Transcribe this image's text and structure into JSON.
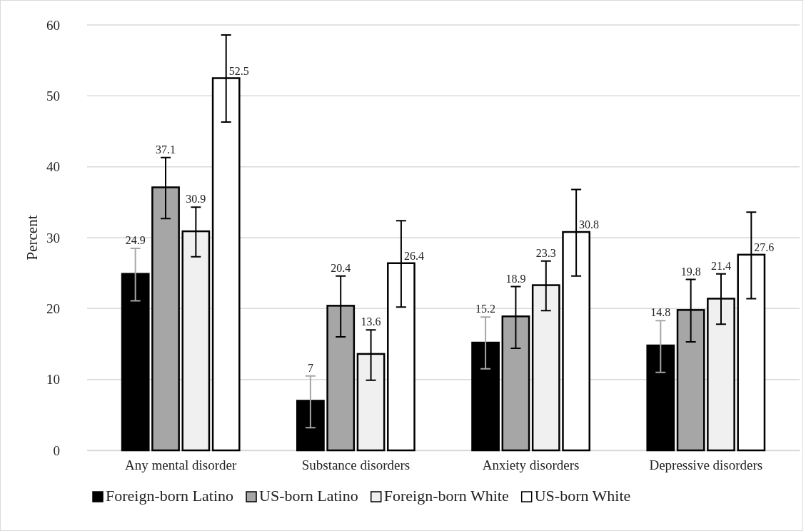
{
  "chart_data": {
    "type": "bar",
    "ylabel": "Percent",
    "categories": [
      "Any mental disorder",
      "Substance disorders",
      "Anxiety disorders",
      "Depressive disorders"
    ],
    "series": [
      {
        "name": "Foreign-born Latino",
        "color": "#000000",
        "values": [
          24.9,
          7,
          15.2,
          14.8
        ],
        "errors": [
          [
            21.1,
            28.5
          ],
          [
            3.2,
            10.5
          ],
          [
            11.5,
            18.8
          ],
          [
            11.0,
            18.3
          ]
        ]
      },
      {
        "name": "US-born Latino",
        "color": "#a6a6a6",
        "values": [
          37.1,
          20.4,
          18.9,
          19.8
        ],
        "errors": [
          [
            32.7,
            41.3
          ],
          [
            16.0,
            24.6
          ],
          [
            14.4,
            23.1
          ],
          [
            15.3,
            24.1
          ]
        ]
      },
      {
        "name": "Foreign-born White",
        "color": "#f0f0f0",
        "values": [
          30.9,
          13.6,
          23.3,
          21.4
        ],
        "errors": [
          [
            27.3,
            34.3
          ],
          [
            9.9,
            17.0
          ],
          [
            19.7,
            26.7
          ],
          [
            17.8,
            24.9
          ]
        ]
      },
      {
        "name": "US-born White",
        "color": "#ffffff",
        "values": [
          52.5,
          26.4,
          30.8,
          27.6
        ],
        "errors": [
          [
            46.3,
            58.6
          ],
          [
            20.2,
            32.4
          ],
          [
            24.6,
            36.8
          ],
          [
            21.4,
            33.6
          ]
        ]
      }
    ],
    "ylim": [
      0,
      60
    ],
    "yticks": [
      0,
      10,
      20,
      30,
      40,
      50,
      60
    ],
    "grid": "y",
    "legend": "bottom",
    "data_labels": true
  }
}
